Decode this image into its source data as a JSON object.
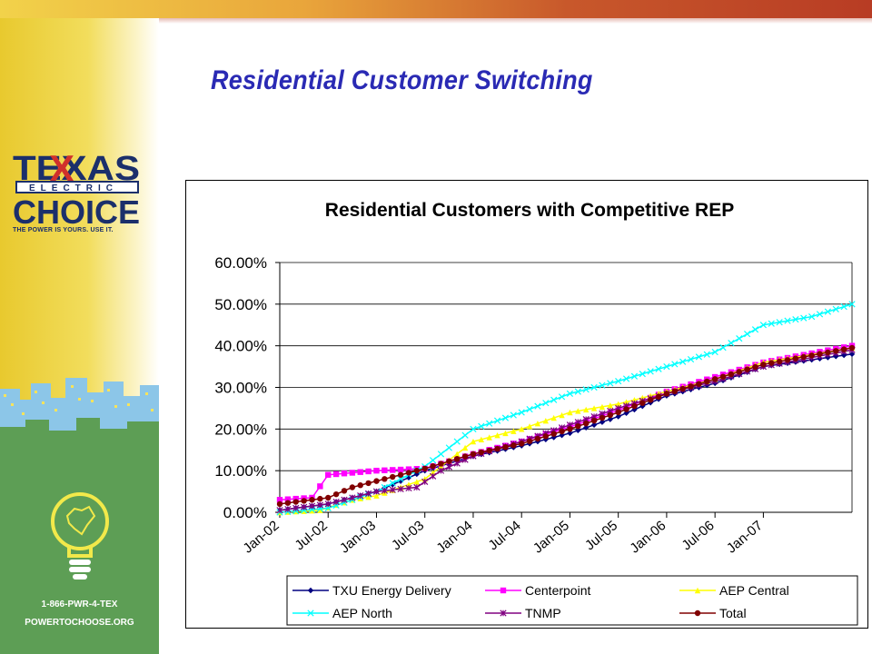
{
  "slide": {
    "title": "Residential Customer Switching",
    "logo_text_top": "TEXAS",
    "logo_text_middle": "ELECTRIC",
    "logo_text_bottom": "CHOICE",
    "logo_tagline": "THE POWER IS YOURS. USE IT.",
    "phone": "1-866-PWR-4-TEX",
    "website": "POWERTOCHOOSE.ORG"
  },
  "colors": {
    "title": "#2a2ab4",
    "sidebar_green": "#5d9e55",
    "sidebar_yellow": "#e8c92e"
  },
  "chart_data": {
    "type": "line",
    "title": "Residential Customers with Competitive REP",
    "ylim": [
      0,
      60
    ],
    "y_ticks": [
      "0.00%",
      "10.00%",
      "20.00%",
      "30.00%",
      "40.00%",
      "50.00%",
      "60.00%"
    ],
    "x_tick_labels": [
      "Jan-02",
      "Jul-02",
      "Jan-03",
      "Jul-03",
      "Jan-04",
      "Jul-04",
      "Jan-05",
      "Jul-05",
      "Jan-06",
      "Jul-06",
      "Jan-07"
    ],
    "x_start": "Jan-02",
    "x_end": "Dec-07",
    "legend_position": "bottom",
    "series": [
      {
        "name": "TXU Energy Delivery",
        "color": "#000080",
        "marker": "diamond",
        "points": [
          [
            0,
            0.5
          ],
          [
            6,
            2
          ],
          [
            12,
            5
          ],
          [
            18,
            10
          ],
          [
            24,
            13.5
          ],
          [
            30,
            16
          ],
          [
            36,
            19
          ],
          [
            42,
            23
          ],
          [
            48,
            28
          ],
          [
            54,
            31
          ],
          [
            60,
            35
          ],
          [
            71,
            38
          ]
        ]
      },
      {
        "name": "Centerpoint",
        "color": "#ff00ff",
        "marker": "square",
        "points": [
          [
            0,
            3
          ],
          [
            4,
            3.5
          ],
          [
            6,
            9
          ],
          [
            12,
            10
          ],
          [
            18,
            10.5
          ],
          [
            24,
            14
          ],
          [
            30,
            17
          ],
          [
            36,
            20.5
          ],
          [
            42,
            24.5
          ],
          [
            48,
            29
          ],
          [
            54,
            32.5
          ],
          [
            60,
            36
          ],
          [
            71,
            40
          ]
        ]
      },
      {
        "name": "AEP Central",
        "color": "#ffff00",
        "marker": "triangle",
        "points": [
          [
            0,
            0
          ],
          [
            5,
            0.5
          ],
          [
            9,
            3
          ],
          [
            12,
            4
          ],
          [
            18,
            8
          ],
          [
            22,
            14
          ],
          [
            24,
            17
          ],
          [
            30,
            20
          ],
          [
            36,
            24
          ],
          [
            42,
            26
          ],
          [
            48,
            29
          ],
          [
            54,
            32
          ],
          [
            60,
            36
          ],
          [
            71,
            39.5
          ]
        ]
      },
      {
        "name": "AEP North",
        "color": "#00ffff",
        "marker": "x",
        "points": [
          [
            0,
            0
          ],
          [
            6,
            1
          ],
          [
            12,
            5
          ],
          [
            18,
            11
          ],
          [
            22,
            17
          ],
          [
            24,
            20
          ],
          [
            30,
            24
          ],
          [
            36,
            28.5
          ],
          [
            42,
            31.5
          ],
          [
            48,
            35
          ],
          [
            54,
            38.5
          ],
          [
            60,
            45
          ],
          [
            66,
            47
          ],
          [
            71,
            50
          ]
        ]
      },
      {
        "name": "TNMP",
        "color": "#800080",
        "marker": "star",
        "points": [
          [
            0,
            0.5
          ],
          [
            6,
            2
          ],
          [
            9,
            3.5
          ],
          [
            12,
            5
          ],
          [
            17,
            6
          ],
          [
            20,
            10
          ],
          [
            24,
            13.5
          ],
          [
            30,
            17
          ],
          [
            36,
            21
          ],
          [
            42,
            25
          ],
          [
            48,
            28.5
          ],
          [
            54,
            31.5
          ],
          [
            60,
            35
          ],
          [
            71,
            39
          ]
        ]
      },
      {
        "name": "Total",
        "color": "#800000",
        "marker": "circle",
        "points": [
          [
            0,
            2
          ],
          [
            6,
            3.5
          ],
          [
            9,
            6
          ],
          [
            12,
            7.5
          ],
          [
            18,
            10.5
          ],
          [
            24,
            14
          ],
          [
            30,
            16.5
          ],
          [
            36,
            20
          ],
          [
            42,
            24
          ],
          [
            48,
            28.5
          ],
          [
            54,
            32
          ],
          [
            60,
            35.5
          ],
          [
            71,
            39.5
          ]
        ]
      }
    ]
  }
}
